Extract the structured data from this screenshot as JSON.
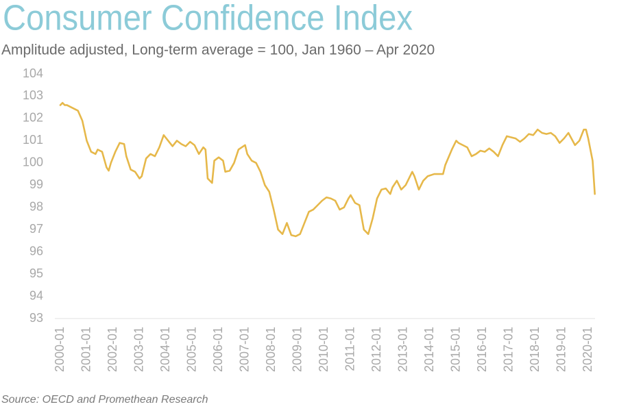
{
  "chart_data": {
    "type": "line",
    "title": "Consumer Confidence Index",
    "subtitle": "Amplitude adjusted, Long-term average = 100, Jan 1960 – Apr 2020",
    "source": "Source: OECD and Promethean Research",
    "x": [
      "2000-01",
      "2000-02",
      "2000-03",
      "2000-04",
      "2000-07",
      "2000-09",
      "2000-11",
      "2001-01",
      "2001-03",
      "2001-05",
      "2001-06",
      "2001-08",
      "2001-10",
      "2001-11",
      "2001-12",
      "2002-02",
      "2002-04",
      "2002-06",
      "2002-07",
      "2002-09",
      "2002-11",
      "2003-01",
      "2003-02",
      "2003-04",
      "2003-06",
      "2003-08",
      "2003-10",
      "2003-12",
      "2004-02",
      "2004-04",
      "2004-06",
      "2004-08",
      "2004-10",
      "2004-12",
      "2005-02",
      "2005-04",
      "2005-06",
      "2005-07",
      "2005-08",
      "2005-10",
      "2005-11",
      "2006-01",
      "2006-03",
      "2006-04",
      "2006-06",
      "2006-08",
      "2006-10",
      "2007-01",
      "2007-02",
      "2007-04",
      "2007-06",
      "2007-08",
      "2007-10",
      "2007-12",
      "2008-02",
      "2008-04",
      "2008-06",
      "2008-08",
      "2008-10",
      "2008-12",
      "2009-02",
      "2009-04",
      "2009-06",
      "2009-08",
      "2009-10",
      "2009-12",
      "2010-02",
      "2010-04",
      "2010-06",
      "2010-08",
      "2010-10",
      "2010-12",
      "2011-01",
      "2011-03",
      "2011-05",
      "2011-07",
      "2011-09",
      "2011-11",
      "2012-01",
      "2012-03",
      "2012-05",
      "2012-07",
      "2012-08",
      "2012-10",
      "2012-12",
      "2013-02",
      "2013-05",
      "2013-06",
      "2013-08",
      "2013-10",
      "2013-12",
      "2014-03",
      "2014-04",
      "2014-07",
      "2014-08",
      "2014-11",
      "2015-01",
      "2015-02",
      "2015-04",
      "2015-06",
      "2015-08",
      "2015-10",
      "2015-12",
      "2016-02",
      "2016-04",
      "2016-06",
      "2016-08",
      "2016-10",
      "2016-12",
      "2017-02",
      "2017-04",
      "2017-06",
      "2017-08",
      "2017-10",
      "2017-12",
      "2018-02",
      "2018-04",
      "2018-06",
      "2018-08",
      "2018-10",
      "2018-12",
      "2019-02",
      "2019-04",
      "2019-07",
      "2019-09",
      "2019-11",
      "2019-12",
      "2020-01",
      "2020-03",
      "2020-04"
    ],
    "series": [
      {
        "name": "Consumer Confidence Index",
        "color": "#e6b84a",
        "values": [
          102.6,
          102.7,
          102.6,
          102.6,
          102.45,
          102.35,
          101.9,
          101.0,
          100.5,
          100.4,
          100.6,
          100.5,
          99.8,
          99.65,
          100.0,
          100.5,
          100.9,
          100.85,
          100.3,
          99.7,
          99.6,
          99.3,
          99.4,
          100.2,
          100.4,
          100.3,
          100.7,
          101.25,
          101.0,
          100.75,
          101.0,
          100.85,
          100.75,
          100.95,
          100.8,
          100.4,
          100.7,
          100.6,
          99.3,
          99.1,
          100.1,
          100.25,
          100.1,
          99.6,
          99.65,
          100.0,
          100.6,
          100.8,
          100.4,
          100.1,
          100.0,
          99.6,
          99.0,
          98.7,
          97.9,
          97.0,
          96.8,
          97.3,
          96.75,
          96.7,
          96.8,
          97.3,
          97.8,
          97.9,
          98.1,
          98.3,
          98.45,
          98.4,
          98.3,
          97.9,
          98.0,
          98.4,
          98.55,
          98.2,
          98.1,
          97.0,
          96.8,
          97.5,
          98.4,
          98.8,
          98.85,
          98.6,
          98.9,
          99.2,
          98.8,
          99.0,
          99.6,
          99.4,
          98.8,
          99.2,
          99.4,
          99.5,
          99.5,
          99.5,
          99.9,
          100.6,
          101.0,
          100.9,
          100.8,
          100.7,
          100.3,
          100.4,
          100.55,
          100.5,
          100.65,
          100.5,
          100.3,
          100.8,
          101.2,
          101.15,
          101.1,
          100.95,
          101.1,
          101.3,
          101.25,
          101.5,
          101.35,
          101.3,
          101.35,
          101.2,
          100.9,
          101.1,
          101.35,
          100.8,
          101.0,
          101.5,
          101.5,
          101.1,
          100.1,
          98.6
        ]
      }
    ],
    "xticks": [
      "2000-01",
      "2001-01",
      "2002-01",
      "2003-01",
      "2004-01",
      "2005-01",
      "2006-01",
      "2007-01",
      "2008-01",
      "2009-01",
      "2010-01",
      "2011-01",
      "2012-01",
      "2013-01",
      "2014-01",
      "2015-01",
      "2016-01",
      "2017-01",
      "2018-01",
      "2019-01",
      "2020-01"
    ],
    "ylim": [
      93,
      104
    ],
    "yticks": [
      93,
      94,
      95,
      96,
      97,
      98,
      99,
      100,
      101,
      102,
      103,
      104
    ],
    "grid": false
  }
}
